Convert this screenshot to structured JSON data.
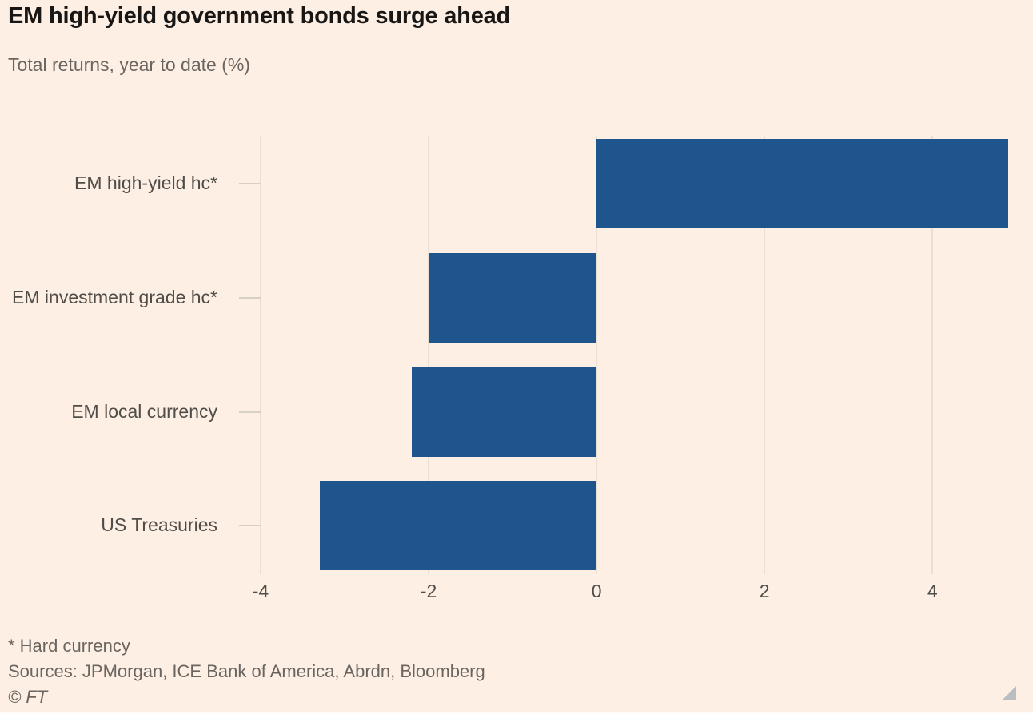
{
  "footer": {
    "footnote": "* Hard currency",
    "sources": "Sources: JPMorgan, ICE Bank of America, Abrdn, Bloomberg",
    "copyright": "© FT"
  },
  "colors": {
    "background": "#fdefe4",
    "bar": "#1f558d",
    "gridline": "#eadfd5",
    "axis_tick": "#d8cfc6",
    "title_text": "#181716",
    "muted_text": "#6b6560",
    "label_text": "#504d49",
    "resize_handle": "#b9bec2"
  },
  "chart_data": {
    "type": "bar",
    "orientation": "horizontal",
    "title": "EM high-yield government bonds surge ahead",
    "subtitle": "Total returns, year to date (%)",
    "categories": [
      "EM high-yield hc*",
      "EM investment grade hc*",
      "EM local currency",
      "US Treasuries"
    ],
    "values": [
      4.9,
      -2.0,
      -2.2,
      -3.3
    ],
    "x_ticks": [
      -4,
      -2,
      0,
      2,
      4
    ],
    "xlim": [
      -4,
      4.95
    ],
    "xlabel": "",
    "ylabel": "",
    "grid": "vertical",
    "legend": "none"
  }
}
